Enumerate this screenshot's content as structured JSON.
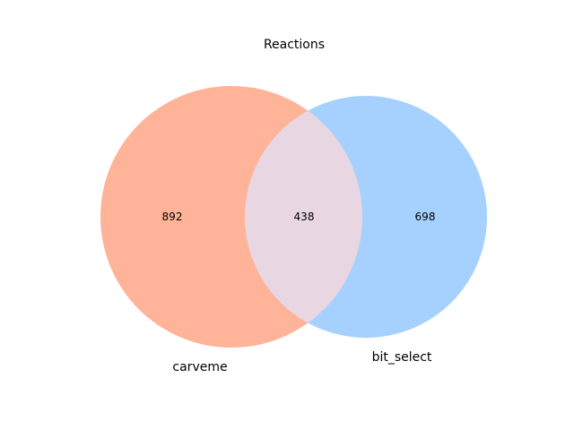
{
  "title": "Reactions",
  "sets": [
    {
      "name": "carveme",
      "only_count": "892",
      "color": "#FFB399"
    },
    {
      "name": "bit_select",
      "only_count": "698",
      "color": "#A6D1FF"
    }
  ],
  "intersection": {
    "count": "438",
    "color": "#E8D6E2"
  }
}
